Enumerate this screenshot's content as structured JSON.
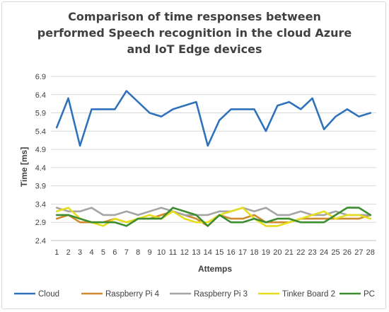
{
  "chart_data": {
    "type": "line",
    "title": [
      "Comparison of time responses between",
      "performed Speech recognition in the cloud Azure",
      "and IoT Edge devices"
    ],
    "xlabel": "Attemps",
    "ylabel": "Time  [ms]",
    "ylim": [
      2.4,
      6.9
    ],
    "yticks": [
      "2.4",
      "2.9",
      "3.4",
      "3.9",
      "4.4",
      "4.9",
      "5.4",
      "5.9",
      "6.4",
      "6.9"
    ],
    "categories": [
      "1",
      "2",
      "3",
      "4",
      "5",
      "6",
      "7",
      "8",
      "9",
      "10",
      "11",
      "12",
      "13",
      "14",
      "15",
      "16",
      "17",
      "18",
      "19",
      "20",
      "21",
      "22",
      "23",
      "24",
      "25",
      "26",
      "27",
      "28"
    ],
    "grid": true,
    "legend_position": "bottom",
    "series": [
      {
        "name": "Cloud",
        "color": "#2f72bc",
        "values": [
          5.5,
          6.3,
          5.0,
          6.0,
          6.0,
          6.0,
          6.5,
          6.2,
          5.9,
          5.8,
          6.0,
          6.1,
          6.2,
          5.0,
          5.7,
          6.0,
          6.0,
          6.0,
          5.4,
          6.1,
          6.2,
          6.0,
          6.3,
          5.45,
          5.8,
          6.0,
          5.8,
          5.9
        ]
      },
      {
        "name": "Raspberry Pi 4",
        "color": "#d08a2e",
        "values": [
          3.0,
          3.1,
          2.9,
          2.9,
          2.9,
          3.0,
          2.9,
          3.0,
          3.0,
          3.1,
          3.2,
          3.1,
          3.0,
          2.8,
          3.1,
          3.0,
          3.0,
          3.1,
          2.9,
          2.9,
          2.9,
          3.0,
          3.0,
          3.0,
          3.0,
          3.0,
          3.0,
          3.1
        ]
      },
      {
        "name": "Raspberry Pi 3",
        "color": "#a5a5a5",
        "values": [
          3.3,
          3.2,
          3.2,
          3.3,
          3.1,
          3.1,
          3.2,
          3.1,
          3.2,
          3.3,
          3.2,
          3.1,
          3.1,
          3.1,
          3.2,
          3.2,
          3.3,
          3.2,
          3.3,
          3.1,
          3.1,
          3.2,
          3.1,
          3.1,
          3.2,
          3.1,
          3.1,
          3.1
        ]
      },
      {
        "name": "Tinker Board 2",
        "color": "#e6dd1f",
        "values": [
          3.2,
          3.3,
          3.0,
          2.9,
          2.8,
          3.0,
          2.9,
          3.0,
          3.1,
          3.0,
          3.2,
          3.0,
          2.9,
          2.9,
          3.1,
          3.2,
          3.3,
          3.0,
          2.8,
          2.8,
          2.9,
          3.0,
          3.1,
          3.2,
          3.0,
          3.1,
          3.1,
          3.0
        ]
      },
      {
        "name": "PC",
        "color": "#3c8d2f",
        "values": [
          3.1,
          3.1,
          3.0,
          2.9,
          2.9,
          2.9,
          2.8,
          3.0,
          3.0,
          3.0,
          3.3,
          3.2,
          3.1,
          2.8,
          3.1,
          2.9,
          2.9,
          3.0,
          2.9,
          3.0,
          3.0,
          2.9,
          2.9,
          2.9,
          3.1,
          3.3,
          3.3,
          3.1
        ]
      }
    ]
  }
}
